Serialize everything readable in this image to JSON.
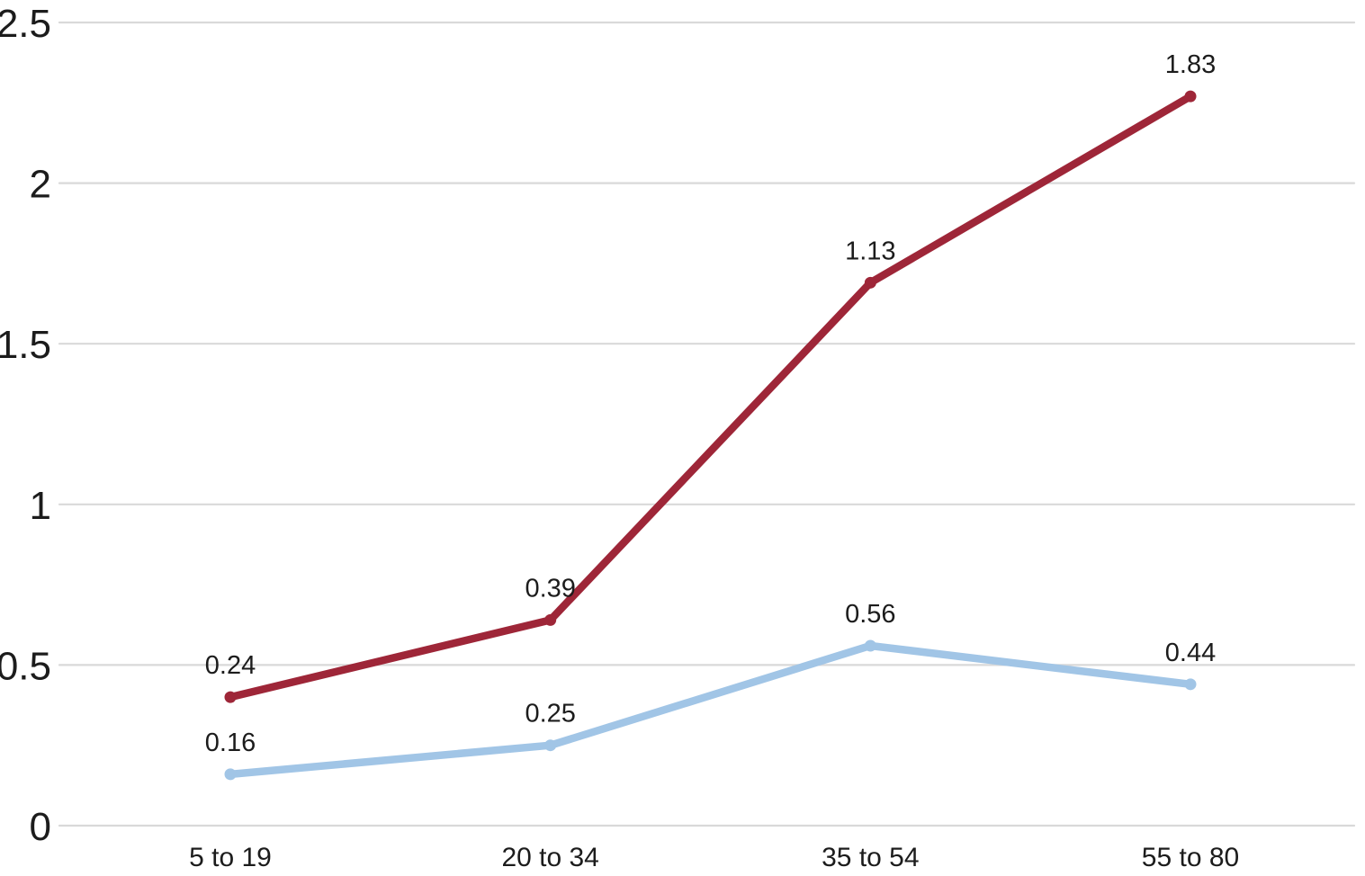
{
  "chart_data": {
    "type": "line",
    "stacked": true,
    "title": "",
    "xlabel": "",
    "ylabel": "",
    "categories": [
      "5 to 19",
      "20 to 34",
      "35 to 54",
      "55 to 80"
    ],
    "series": [
      {
        "name": "blue",
        "color": "#a1c5e6",
        "values": [
          0.16,
          0.25,
          0.56,
          0.44
        ],
        "labels": [
          "0.16",
          "0.25",
          "0.56",
          "0.44"
        ]
      },
      {
        "name": "red",
        "color": "#9e2638",
        "values": [
          0.24,
          0.39,
          1.13,
          1.83
        ],
        "labels": [
          "0.24",
          "0.39",
          "1.13",
          "1.83"
        ]
      }
    ],
    "ylim": [
      0,
      2.5
    ],
    "yticks": [
      0,
      0.5,
      1,
      1.5,
      2,
      2.5
    ],
    "ytick_labels": [
      "0",
      "0.5",
      "1",
      "1.5",
      "2",
      "2.5"
    ],
    "grid": true,
    "legend": false,
    "gridline_color": "#d9d9d9",
    "text_color": "#1c1c1c",
    "background": "#ffffff"
  }
}
